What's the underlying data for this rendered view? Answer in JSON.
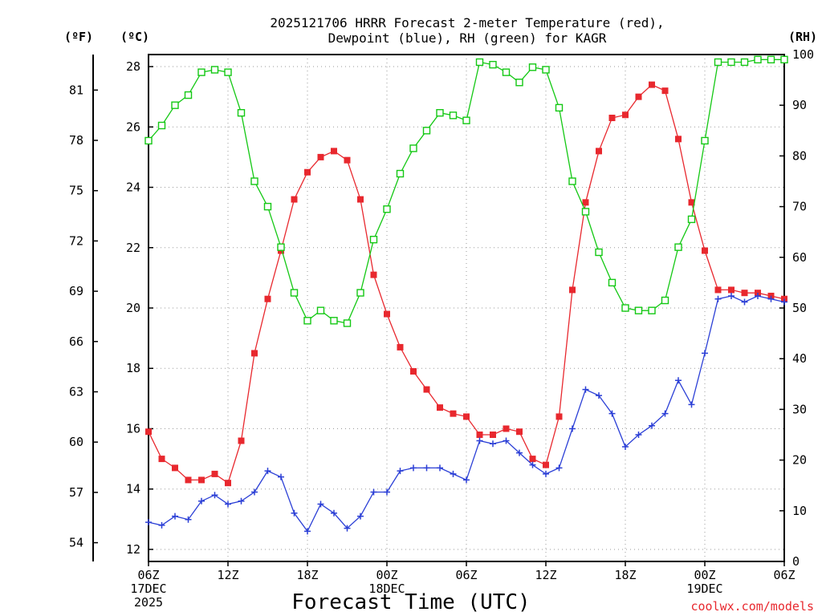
{
  "chart_data": {
    "type": "line",
    "title_lines": [
      "2025121706 HRRR Forecast 2-meter Temperature (red),",
      "Dewpoint (blue), RH (green) for KAGR"
    ],
    "xlabel": "Forecast Time (UTC)",
    "credit": "coolwx.com/models",
    "left_outer_unit": "(ºF)",
    "left_inner_unit": "(ºC)",
    "right_unit": "(RH)",
    "colors": {
      "temperature": "#e8282e",
      "dewpoint": "#2b3fd6",
      "rh": "#14c814",
      "grid": "#9a9a9a"
    },
    "grid": true,
    "x_start_hour": 6,
    "x_end_hour": 54,
    "x_ticks": [
      {
        "hour": 6,
        "lines": [
          "06Z",
          "17DEC",
          "2025"
        ]
      },
      {
        "hour": 12,
        "lines": [
          "12Z"
        ]
      },
      {
        "hour": 18,
        "lines": [
          "18Z"
        ]
      },
      {
        "hour": 24,
        "lines": [
          "00Z",
          "18DEC"
        ]
      },
      {
        "hour": 30,
        "lines": [
          "06Z"
        ]
      },
      {
        "hour": 36,
        "lines": [
          "12Z"
        ]
      },
      {
        "hour": 42,
        "lines": [
          "18Z"
        ]
      },
      {
        "hour": 48,
        "lines": [
          "00Z",
          "19DEC"
        ]
      },
      {
        "hour": 54,
        "lines": [
          "06Z"
        ]
      }
    ],
    "celsius_axis": {
      "ylim": [
        11.6,
        28.4
      ],
      "ticks": [
        12,
        14,
        16,
        18,
        20,
        22,
        24,
        26,
        28
      ]
    },
    "fahrenheit_ticks": [
      54,
      57,
      60,
      63,
      66,
      69,
      72,
      75,
      78,
      81
    ],
    "rh_axis": {
      "ylim": [
        0,
        100
      ],
      "ticks": [
        0,
        10,
        20,
        30,
        40,
        50,
        60,
        70,
        80,
        90,
        100
      ]
    },
    "series": [
      {
        "name": "Temperature (red)",
        "key": "temperature",
        "axis": "celsius",
        "marker": "filled-square",
        "values": [
          15.9,
          15.0,
          14.7,
          14.3,
          14.3,
          14.5,
          14.2,
          15.6,
          18.5,
          20.3,
          21.9,
          23.6,
          24.5,
          25.0,
          25.2,
          24.9,
          23.6,
          21.1,
          19.8,
          18.7,
          17.9,
          17.3,
          16.7,
          16.5,
          16.4,
          15.8,
          15.8,
          16.0,
          15.9,
          15.0,
          14.8,
          16.4,
          20.6,
          23.5,
          25.2,
          26.3,
          26.4,
          27.0,
          27.4,
          27.2,
          25.6,
          23.5,
          21.9,
          20.6,
          20.6,
          20.5,
          20.5,
          20.4,
          20.3
        ]
      },
      {
        "name": "Dewpoint (blue)",
        "key": "dewpoint",
        "axis": "celsius",
        "marker": "plus",
        "values": [
          12.9,
          12.8,
          13.1,
          12.99,
          13.6,
          13.8,
          13.5,
          13.6,
          13.9,
          14.6,
          14.4,
          13.2,
          12.6,
          13.5,
          13.2,
          12.7,
          13.1,
          13.9,
          13.9,
          14.6,
          14.7,
          14.7,
          14.7,
          14.5,
          14.3,
          15.6,
          15.5,
          15.6,
          15.2,
          14.8,
          14.5,
          14.7,
          16.0,
          17.3,
          17.1,
          16.5,
          15.4,
          15.8,
          16.1,
          16.5,
          17.6,
          16.8,
          18.5,
          20.3,
          20.4,
          20.2,
          20.4,
          20.3,
          20.2
        ]
      },
      {
        "name": "RH (green)",
        "key": "rh",
        "axis": "rh",
        "marker": "hollow-square",
        "values": [
          83,
          86,
          90,
          92,
          96.5,
          97,
          96.5,
          88.5,
          75,
          70,
          62,
          53,
          47.5,
          49.5,
          47.5,
          47,
          53,
          63.5,
          69.5,
          76.5,
          81.5,
          85,
          88.5,
          88,
          87,
          98.5,
          98,
          96.5,
          94.5,
          97.5,
          97,
          89.5,
          75,
          69,
          61,
          55,
          50,
          49.5,
          49.5,
          51.5,
          62,
          67.5,
          83,
          98.5,
          98.5,
          98.5,
          99,
          99,
          99
        ]
      }
    ]
  }
}
